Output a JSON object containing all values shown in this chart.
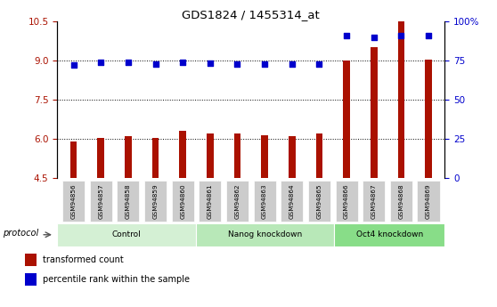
{
  "title": "GDS1824 / 1455314_at",
  "samples": [
    "GSM94856",
    "GSM94857",
    "GSM94858",
    "GSM94859",
    "GSM94860",
    "GSM94861",
    "GSM94862",
    "GSM94863",
    "GSM94864",
    "GSM94865",
    "GSM94866",
    "GSM94867",
    "GSM94868",
    "GSM94869"
  ],
  "bar_values": [
    5.9,
    6.05,
    6.1,
    6.05,
    6.3,
    6.2,
    6.2,
    6.15,
    6.1,
    6.2,
    9.0,
    9.5,
    10.5,
    9.05
  ],
  "dot_values": [
    8.85,
    8.93,
    8.92,
    8.88,
    8.93,
    8.9,
    8.88,
    8.88,
    8.88,
    8.88,
    9.95,
    9.88,
    9.95,
    9.95
  ],
  "groups": [
    {
      "label": "Control",
      "start": 0,
      "end": 5,
      "color": "#d4f0d4"
    },
    {
      "label": "Nanog knockdown",
      "start": 5,
      "end": 10,
      "color": "#b8e8b8"
    },
    {
      "label": "Oct4 knockdown",
      "start": 10,
      "end": 14,
      "color": "#88dd88"
    }
  ],
  "ylim_left": [
    4.5,
    10.5
  ],
  "ylim_right": [
    0,
    100
  ],
  "yticks_left": [
    4.5,
    6.0,
    7.5,
    9.0,
    10.5
  ],
  "yticks_right": [
    0,
    25,
    50,
    75,
    100
  ],
  "bar_color": "#AA1100",
  "dot_color": "#0000CC",
  "protocol_label": "protocol",
  "legend_bar": "transformed count",
  "legend_dot": "percentile rank within the sample"
}
